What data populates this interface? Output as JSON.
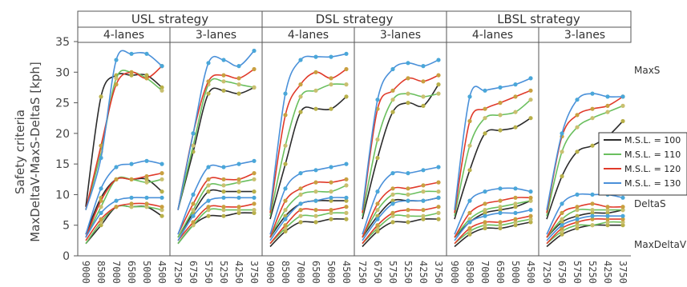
{
  "chart_data": {
    "type": "line",
    "ylabel_line1": "Safety criteria",
    "ylabel_line2": "MaxDeltaV-MaxS-DeltaS [kph]",
    "ylim": [
      0,
      35
    ],
    "yticks": [
      0,
      5,
      10,
      15,
      20,
      25,
      30,
      35
    ],
    "grid": false,
    "legend_position": "right",
    "strategies": [
      "USL strategy",
      "DSL strategy",
      "LBSL strategy"
    ],
    "lanes": [
      "4-lanes",
      "3-lanes"
    ],
    "annotations": [
      "MaxS",
      "DeltaS",
      "MaxDeltaV"
    ],
    "series": [
      {
        "name": "M.S.L. = 100",
        "color": "#2b2b2b"
      },
      {
        "name": "M.S.L. = 110",
        "color": "#6abf5e"
      },
      {
        "name": "M.S.L. = 120",
        "color": "#e03a2a"
      },
      {
        "name": "M.S.L. = 130",
        "color": "#4a90d9"
      }
    ],
    "panels": [
      {
        "strategy": "USL strategy",
        "lanes": "4-lanes",
        "x": [
          "9000",
          "8500",
          "7000",
          "6500",
          "5000",
          "4500"
        ],
        "MaxS": {
          "M.S.L. = 100": [
            8,
            26,
            29.5,
            29.5,
            29.5,
            27.5
          ],
          "M.S.L. = 110": [
            7.5,
            17,
            29,
            30,
            29,
            27
          ],
          "M.S.L. = 120": [
            7.5,
            18,
            28,
            30,
            29,
            31
          ],
          "M.S.L. = 130": [
            7.5,
            16,
            32,
            33,
            33,
            31
          ]
        },
        "DeltaS": {
          "M.S.L. = 100": [
            3.5,
            9.5,
            12.5,
            12.5,
            12.5,
            10.5
          ],
          "M.S.L. = 110": [
            3,
            8,
            12.5,
            12.5,
            12,
            12.5
          ],
          "M.S.L. = 120": [
            3,
            9,
            12.5,
            12.5,
            13,
            13.5
          ],
          "M.S.L. = 130": [
            3.5,
            11,
            14.5,
            15,
            15.5,
            15
          ]
        },
        "MaxDeltaV": {
          "M.S.L. = 100": [
            2,
            5,
            8,
            8,
            8,
            6.5
          ],
          "M.S.L. = 110": [
            2,
            5.5,
            8,
            8,
            8,
            7.5
          ],
          "M.S.L. = 120": [
            2.5,
            6,
            8,
            8.5,
            8.5,
            8
          ],
          "M.S.L. = 130": [
            3,
            7,
            9,
            9.5,
            9.5,
            9.5
          ]
        }
      },
      {
        "strategy": "USL strategy",
        "lanes": "3-lanes",
        "x": [
          "7250",
          "6750",
          "5750",
          "5250",
          "4250",
          "3750"
        ],
        "MaxS": {
          "M.S.L. = 100": [
            7.5,
            17,
            26.5,
            27,
            26.5,
            27.5
          ],
          "M.S.L. = 110": [
            7.5,
            18,
            28,
            28.5,
            28,
            27.5
          ],
          "M.S.L. = 120": [
            7.5,
            20,
            28.5,
            29.5,
            29,
            30.5
          ],
          "M.S.L. = 130": [
            7.5,
            20,
            31.5,
            32,
            31,
            33.5
          ]
        },
        "DeltaS": {
          "M.S.L. = 100": [
            3,
            7,
            10.5,
            10.5,
            10.5,
            10.5
          ],
          "M.S.L. = 110": [
            3,
            7.5,
            11.5,
            11.5,
            12,
            12.5
          ],
          "M.S.L. = 120": [
            3.5,
            8.5,
            12.5,
            12.5,
            12.5,
            13.5
          ],
          "M.S.L. = 130": [
            3.5,
            10,
            14.5,
            14.5,
            15,
            15.5
          ]
        },
        "MaxDeltaV": {
          "M.S.L. = 100": [
            2,
            5,
            6.5,
            6.5,
            7,
            7
          ],
          "M.S.L. = 110": [
            2,
            5,
            7.5,
            7.5,
            7.5,
            7.5
          ],
          "M.S.L. = 120": [
            2.5,
            5.5,
            8,
            8,
            8,
            8.5
          ],
          "M.S.L. = 130": [
            2.5,
            6.5,
            9,
            9.5,
            9.5,
            9.5
          ]
        }
      },
      {
        "strategy": "DSL strategy",
        "lanes": "4-lanes",
        "x": [
          "9000",
          "8500",
          "7000",
          "6500",
          "5000",
          "4500"
        ],
        "MaxS": {
          "M.S.L. = 100": [
            6,
            15,
            23.5,
            24,
            24,
            26
          ],
          "M.S.L. = 110": [
            6.5,
            18,
            26,
            27,
            28,
            28
          ],
          "M.S.L. = 120": [
            7,
            23,
            28,
            30,
            29,
            30.5
          ],
          "M.S.L. = 130": [
            7.5,
            26.5,
            32,
            32.5,
            32.5,
            33
          ]
        },
        "DeltaS": {
          "M.S.L. = 100": [
            3,
            6.5,
            8.5,
            9,
            9,
            9
          ],
          "M.S.L. = 110": [
            3,
            7.5,
            10,
            10.5,
            10.5,
            11.5
          ],
          "M.S.L. = 120": [
            3,
            9,
            11,
            12,
            12,
            12.5
          ],
          "M.S.L. = 130": [
            3.5,
            11,
            13.5,
            14,
            14.5,
            15
          ]
        },
        "MaxDeltaV": {
          "M.S.L. = 100": [
            1.5,
            4,
            5.5,
            5.5,
            6,
            6
          ],
          "M.S.L. = 110": [
            2,
            4.5,
            6.5,
            6.5,
            7,
            7
          ],
          "M.S.L. = 120": [
            2,
            5,
            7.5,
            7.5,
            7.5,
            8
          ],
          "M.S.L. = 130": [
            2.5,
            6,
            8.5,
            9,
            9.5,
            9.5
          ]
        }
      },
      {
        "strategy": "DSL strategy",
        "lanes": "3-lanes",
        "x": [
          "7250",
          "6750",
          "5750",
          "5250",
          "4250",
          "3750"
        ],
        "MaxS": {
          "M.S.L. = 100": [
            6,
            16,
            23.5,
            25,
            24.5,
            28
          ],
          "M.S.L. = 110": [
            6.5,
            19,
            25.5,
            26.5,
            26,
            26.5
          ],
          "M.S.L. = 120": [
            7,
            24,
            27,
            29,
            28.5,
            29.5
          ],
          "M.S.L. = 130": [
            7.5,
            25.5,
            30.5,
            31.5,
            31,
            32
          ]
        },
        "DeltaS": {
          "M.S.L. = 100": [
            3,
            6.5,
            9,
            9,
            9,
            9.5
          ],
          "M.S.L. = 110": [
            3,
            7.5,
            10,
            10,
            10.5,
            10.5
          ],
          "M.S.L. = 120": [
            3,
            8.5,
            11,
            11,
            11.5,
            12
          ],
          "M.S.L. = 130": [
            3.5,
            10.5,
            13.5,
            13.5,
            14,
            14.5
          ]
        },
        "MaxDeltaV": {
          "M.S.L. = 100": [
            1.5,
            4,
            5.5,
            5.5,
            6,
            6
          ],
          "M.S.L. = 110": [
            2,
            4.5,
            6.5,
            6.5,
            6.5,
            7
          ],
          "M.S.L. = 120": [
            2,
            5,
            7,
            7.5,
            7.5,
            8
          ],
          "M.S.L. = 130": [
            2.5,
            6,
            8.5,
            9,
            9,
            9.5
          ]
        }
      },
      {
        "strategy": "LBSL strategy",
        "lanes": "4-lanes",
        "x": [
          "9000",
          "8500",
          "7000",
          "6500",
          "5000",
          "4500"
        ],
        "MaxS": {
          "M.S.L. = 100": [
            6,
            14,
            20,
            20.5,
            21,
            22.5
          ],
          "M.S.L. = 110": [
            6.5,
            18,
            22.5,
            23,
            23.5,
            25.5
          ],
          "M.S.L. = 120": [
            7,
            22,
            24,
            25,
            26,
            27
          ],
          "M.S.L. = 130": [
            7.5,
            26,
            27,
            27.5,
            28,
            29
          ]
        },
        "DeltaS": {
          "M.S.L. = 100": [
            3,
            5.5,
            7,
            7.5,
            8,
            9
          ],
          "M.S.L. = 110": [
            3,
            6,
            7.5,
            8,
            8.5,
            9
          ],
          "M.S.L. = 120": [
            3,
            7,
            8.5,
            9,
            9.5,
            9.5
          ],
          "M.S.L. = 130": [
            3.5,
            9,
            10.5,
            11,
            11,
            10.5
          ]
        },
        "MaxDeltaV": {
          "M.S.L. = 100": [
            1.5,
            3.5,
            4.5,
            4.5,
            5,
            5.5
          ],
          "M.S.L. = 110": [
            2,
            4,
            5,
            5,
            5.5,
            6
          ],
          "M.S.L. = 120": [
            2,
            4.5,
            5.5,
            5.5,
            6,
            6.5
          ],
          "M.S.L. = 130": [
            2.5,
            5.5,
            6.5,
            7,
            7,
            7.5
          ]
        }
      },
      {
        "strategy": "LBSL strategy",
        "lanes": "3-lanes",
        "x": [
          "7250",
          "6750",
          "5750",
          "5250",
          "4250",
          "3750"
        ],
        "MaxS": {
          "M.S.L. = 100": [
            6,
            13,
            17,
            18,
            19.5,
            22
          ],
          "M.S.L. = 110": [
            6.5,
            17,
            21,
            22.5,
            23.5,
            24.5
          ],
          "M.S.L. = 120": [
            7,
            19.5,
            23,
            24,
            24.5,
            26
          ],
          "M.S.L. = 130": [
            7.5,
            20,
            25.5,
            26.5,
            26,
            26
          ]
        },
        "DeltaS": {
          "M.S.L. = 100": [
            3,
            5.5,
            6.5,
            7,
            7,
            7.5
          ],
          "M.S.L. = 110": [
            3,
            6,
            7.5,
            7.5,
            7.5,
            7.5
          ],
          "M.S.L. = 120": [
            3,
            7,
            8,
            8.5,
            8,
            8
          ],
          "M.S.L. = 130": [
            3.5,
            8.5,
            10,
            10,
            10,
            9.5
          ]
        },
        "MaxDeltaV": {
          "M.S.L. = 100": [
            1.5,
            3.5,
            4.5,
            5,
            5,
            5
          ],
          "M.S.L. = 110": [
            2,
            4,
            5,
            5,
            5.5,
            5.5
          ],
          "M.S.L. = 120": [
            2,
            4.5,
            5.5,
            6,
            6,
            6
          ],
          "M.S.L. = 130": [
            2.5,
            5,
            6,
            6.5,
            6.5,
            6.5
          ]
        }
      }
    ]
  }
}
